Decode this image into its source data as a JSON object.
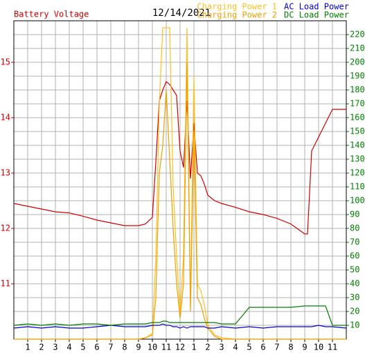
{
  "chart_data": {
    "type": "line",
    "title": "12/14/2021",
    "ylabel": "Battery Voltage",
    "x": [
      0,
      1,
      2,
      3,
      4,
      5,
      6,
      7,
      8,
      9,
      9.5,
      10,
      10.25,
      10.5,
      10.75,
      11,
      11.25,
      11.5,
      11.75,
      12,
      12.25,
      12.5,
      12.75,
      13,
      13.25,
      13.5,
      13.75,
      14,
      14.5,
      15,
      16,
      17,
      18,
      19,
      20,
      21,
      21.2,
      21.5,
      22,
      22.5,
      23,
      24
    ],
    "xlim": [
      0,
      24
    ],
    "xticks": [
      1,
      2,
      3,
      4,
      5,
      6,
      7,
      8,
      9,
      10,
      11,
      12,
      {
        "value": 13,
        "label": "1"
      },
      {
        "value": 14,
        "label": "2"
      },
      {
        "value": 15,
        "label": "3"
      },
      {
        "value": 16,
        "label": "4"
      },
      {
        "value": 17,
        "label": "5"
      },
      {
        "value": 18,
        "label": "6"
      },
      {
        "value": 19,
        "label": "7"
      },
      {
        "value": 20,
        "label": "8"
      },
      {
        "value": 21,
        "label": "9"
      },
      {
        "value": 22,
        "label": "10"
      },
      {
        "value": 23,
        "label": "11"
      }
    ],
    "ylim": [
      10,
      15.75
    ],
    "yticks": [
      11,
      12,
      13,
      14,
      15
    ],
    "y2lim": [
      0,
      230
    ],
    "y2ticks": [
      10,
      20,
      30,
      40,
      50,
      60,
      70,
      80,
      90,
      100,
      110,
      120,
      130,
      140,
      150,
      160,
      170,
      180,
      190,
      200,
      210,
      220
    ],
    "grid": true,
    "series": [
      {
        "name": "Battery Voltage",
        "color": "#d00000",
        "values": [
          12.45,
          12.4,
          12.35,
          12.3,
          12.28,
          12.22,
          12.15,
          12.1,
          12.05,
          12.05,
          12.08,
          12.2,
          13.2,
          14.3,
          14.5,
          14.65,
          14.6,
          14.5,
          14.4,
          13.4,
          13.1,
          14.3,
          12.9,
          13.9,
          13.0,
          12.95,
          12.8,
          12.6,
          12.5,
          12.45,
          12.38,
          12.3,
          12.25,
          12.18,
          12.08,
          11.9,
          11.9,
          13.4,
          13.65,
          13.9,
          14.15,
          14.15
        ]
      },
      {
        "name": "Charging Power 1",
        "color": "#ffc020",
        "axis": "y2",
        "values": [
          0,
          0,
          0,
          0,
          0,
          0,
          0,
          0,
          0,
          0,
          1,
          4,
          60,
          170,
          225,
          225,
          225,
          110,
          60,
          20,
          60,
          225,
          25,
          190,
          40,
          35,
          25,
          10,
          3,
          1,
          0,
          0,
          0,
          0,
          0,
          0,
          0,
          0,
          0,
          0,
          0,
          0
        ]
      },
      {
        "name": "Charging Power 2",
        "color": "#f0a000",
        "axis": "y2",
        "values": [
          0,
          0,
          0,
          0,
          0,
          0,
          0,
          0,
          0,
          0,
          1,
          3,
          30,
          120,
          140,
          180,
          130,
          80,
          40,
          15,
          40,
          200,
          20,
          150,
          30,
          25,
          15,
          8,
          2,
          0,
          0,
          0,
          0,
          0,
          0,
          0,
          0,
          0,
          0,
          0,
          0,
          0
        ]
      },
      {
        "name": "AC Load Power",
        "color": "#0000d0",
        "axis": "y2",
        "values": [
          8,
          9,
          8,
          9,
          8,
          8,
          9,
          10,
          9,
          9,
          9,
          10,
          10,
          10,
          11,
          10,
          10,
          9,
          9,
          8,
          9,
          8,
          9,
          9,
          9,
          9,
          9,
          8,
          8,
          9,
          8,
          9,
          8,
          9,
          9,
          9,
          9,
          9,
          10,
          9,
          9,
          8
        ]
      },
      {
        "name": "DC Load Power",
        "color": "#008000",
        "axis": "y2",
        "values": [
          10,
          11,
          10,
          11,
          10,
          11,
          11,
          10,
          11,
          11,
          11,
          12,
          12,
          12,
          13,
          13,
          12,
          12,
          12,
          12,
          12,
          12,
          12,
          12,
          12,
          12,
          12,
          12,
          12,
          11,
          11,
          23,
          23,
          23,
          23,
          24,
          24,
          24,
          24,
          24,
          10,
          10
        ]
      }
    ]
  }
}
